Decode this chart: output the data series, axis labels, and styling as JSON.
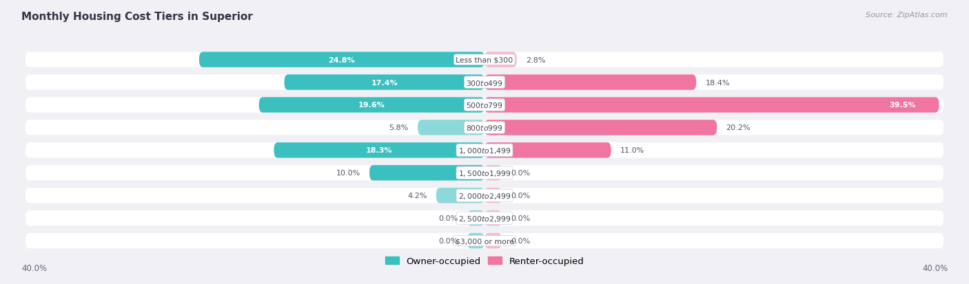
{
  "title": "Monthly Housing Cost Tiers in Superior",
  "source": "Source: ZipAtlas.com",
  "categories": [
    "Less than $300",
    "$300 to $499",
    "$500 to $799",
    "$800 to $999",
    "$1,000 to $1,499",
    "$1,500 to $1,999",
    "$2,000 to $2,499",
    "$2,500 to $2,999",
    "$3,000 or more"
  ],
  "owner_values": [
    24.8,
    17.4,
    19.6,
    5.8,
    18.3,
    10.0,
    4.2,
    0.0,
    0.0
  ],
  "renter_values": [
    2.8,
    18.4,
    39.5,
    20.2,
    11.0,
    0.0,
    0.0,
    0.0,
    0.0
  ],
  "owner_color_dark": "#3bbfbf",
  "owner_color_light": "#8dd8d8",
  "renter_color_dark": "#f075a0",
  "renter_color_light": "#f7b8cc",
  "bg_color": "#f0f0f5",
  "row_bg_color": "#ffffff",
  "max_value": 40.0,
  "legend_owner": "Owner-occupied",
  "legend_renter": "Renter-occupied",
  "axis_label": "40.0%",
  "zero_stub": 1.5,
  "owner_dark_threshold": 10.0,
  "renter_dark_threshold": 10.0
}
